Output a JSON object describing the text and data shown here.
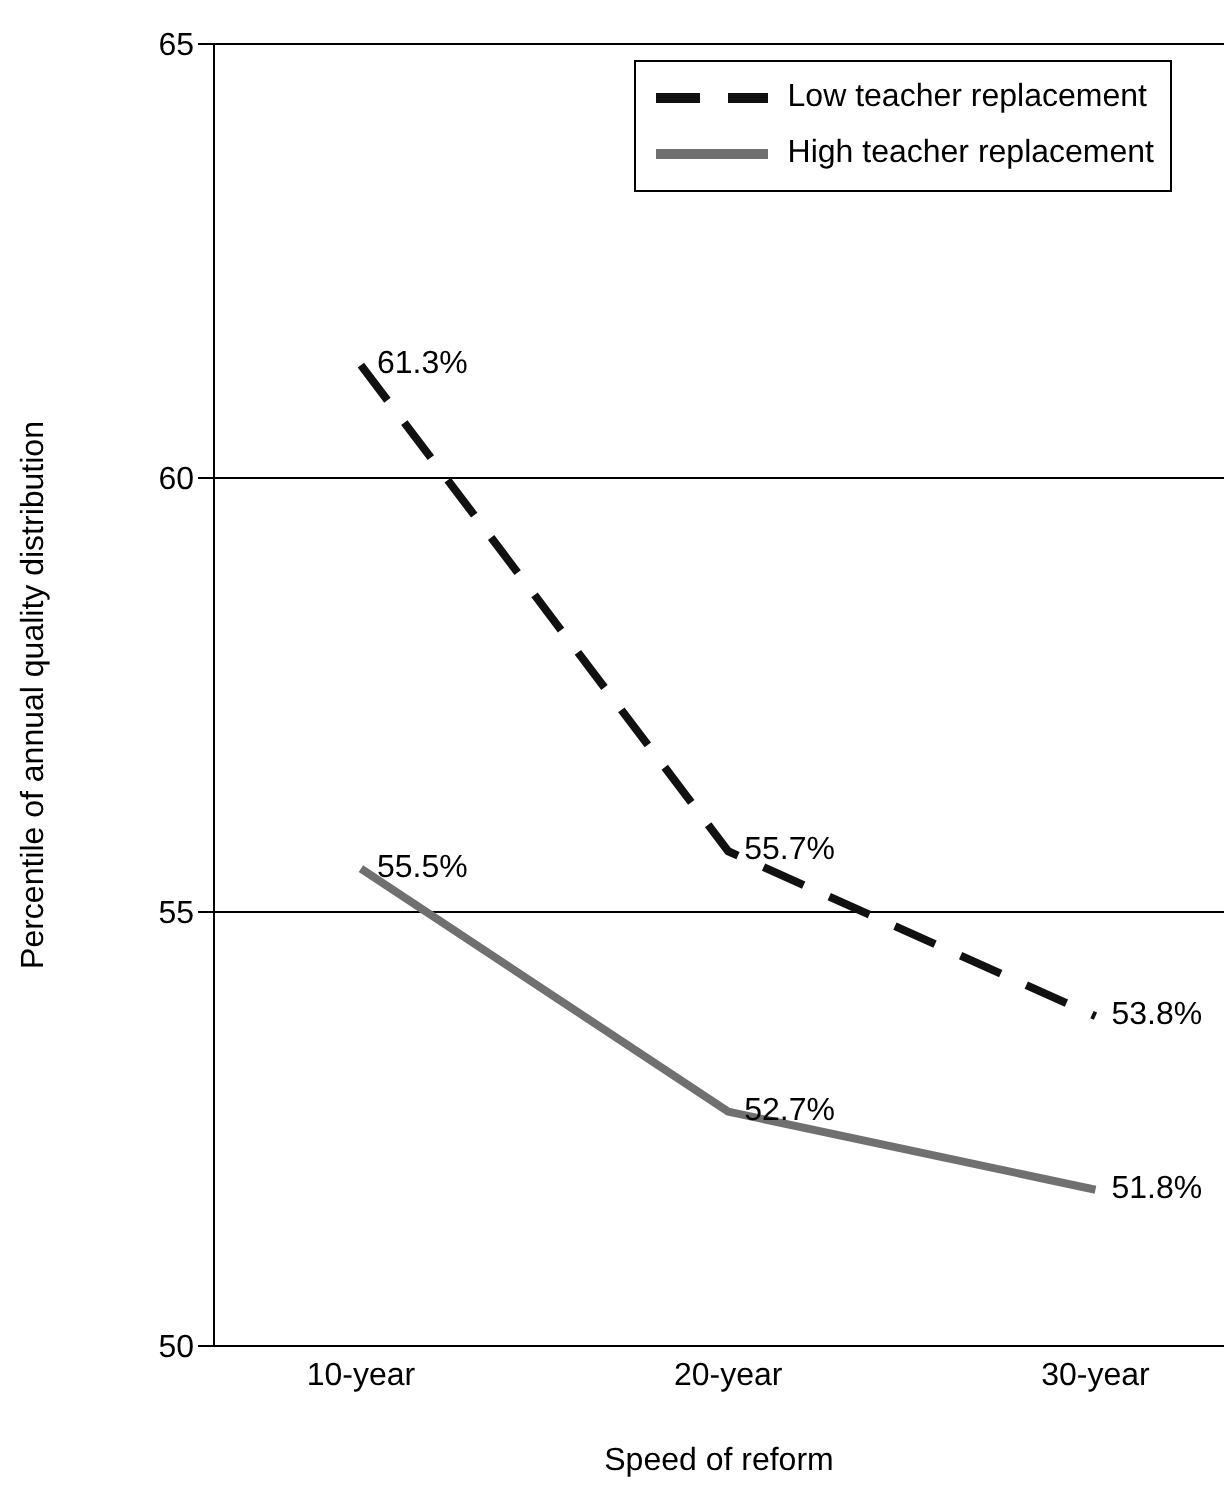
{
  "chart_data": {
    "type": "line",
    "xlabel": "Speed of reform",
    "ylabel": "Percentile of annual quality distribution",
    "categories": [
      "10-year",
      "20-year",
      "30-year"
    ],
    "series": [
      {
        "name": "Low teacher replacement",
        "color": "#111111",
        "line_style": "dashed",
        "values": [
          61.3,
          55.7,
          53.8
        ],
        "value_labels": [
          "61.3%",
          "55.7%",
          "53.8%"
        ]
      },
      {
        "name": "High teacher replacement",
        "color": "#707070",
        "line_style": "solid",
        "values": [
          55.5,
          52.7,
          51.8
        ],
        "value_labels": [
          "55.5%",
          "52.7%",
          "51.8%"
        ]
      }
    ],
    "ylim": [
      50,
      65
    ],
    "yticks": [
      50,
      55,
      60,
      65
    ],
    "grid": "y",
    "legend": "top right",
    "marker": "none"
  }
}
